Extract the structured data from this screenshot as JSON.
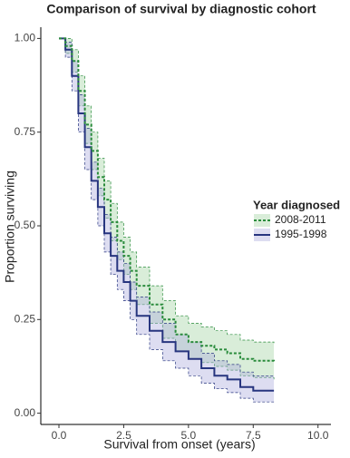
{
  "chart_data": {
    "type": "line",
    "step": true,
    "title": "Comparison of survival by diagnostic cohort",
    "x_label": "Survival from onset (years)",
    "y_label": "Proportion surviving",
    "legend_title": "Year diagnosed",
    "legend": "right",
    "x": [
      0,
      0.25,
      0.5,
      0.75,
      1,
      1.25,
      1.5,
      1.75,
      2,
      2.25,
      2.5,
      2.75,
      3,
      3.5,
      4,
      4.5,
      5,
      5.5,
      6,
      6.5,
      7,
      7.5,
      8.3
    ],
    "series": [
      {
        "name": "2008-2011",
        "color": "#2a8c3c",
        "band_color": "#9fd39f",
        "dash": true,
        "values": [
          1.0,
          0.98,
          0.94,
          0.86,
          0.77,
          0.7,
          0.63,
          0.57,
          0.51,
          0.46,
          0.42,
          0.38,
          0.34,
          0.29,
          0.25,
          0.21,
          0.19,
          0.18,
          0.17,
          0.16,
          0.145,
          0.14,
          0.135
        ],
        "lower": [
          1.0,
          0.96,
          0.91,
          0.82,
          0.72,
          0.65,
          0.58,
          0.52,
          0.46,
          0.41,
          0.37,
          0.33,
          0.29,
          0.24,
          0.2,
          0.165,
          0.145,
          0.135,
          0.125,
          0.115,
          0.1,
          0.095,
          0.09
        ],
        "upper": [
          1.0,
          1.0,
          0.97,
          0.9,
          0.82,
          0.75,
          0.68,
          0.62,
          0.56,
          0.51,
          0.47,
          0.43,
          0.39,
          0.34,
          0.3,
          0.26,
          0.24,
          0.23,
          0.22,
          0.21,
          0.195,
          0.19,
          0.185
        ]
      },
      {
        "name": "1995-1998",
        "color": "#27357f",
        "band_color": "#a9a9dc",
        "dash": false,
        "values": [
          1.0,
          0.97,
          0.9,
          0.8,
          0.71,
          0.62,
          0.55,
          0.48,
          0.42,
          0.38,
          0.35,
          0.3,
          0.26,
          0.22,
          0.19,
          0.165,
          0.145,
          0.12,
          0.1,
          0.09,
          0.07,
          0.06,
          0.06
        ],
        "lower": [
          1.0,
          0.95,
          0.86,
          0.75,
          0.65,
          0.57,
          0.5,
          0.43,
          0.37,
          0.33,
          0.3,
          0.25,
          0.21,
          0.17,
          0.14,
          0.12,
          0.1,
          0.08,
          0.065,
          0.055,
          0.04,
          0.03,
          0.03
        ],
        "upper": [
          1.0,
          0.99,
          0.94,
          0.85,
          0.76,
          0.67,
          0.6,
          0.53,
          0.47,
          0.43,
          0.4,
          0.35,
          0.31,
          0.27,
          0.24,
          0.21,
          0.19,
          0.16,
          0.14,
          0.13,
          0.11,
          0.1,
          0.1
        ]
      }
    ],
    "xlim": [
      -0.7,
      10.5
    ],
    "ylim": [
      -0.03,
      1.03
    ],
    "xticks": [
      {
        "value": 0,
        "label": "0.0"
      },
      {
        "value": 2.5,
        "label": "2.5"
      },
      {
        "value": 5,
        "label": "5.0"
      },
      {
        "value": 7.5,
        "label": "7.5"
      },
      {
        "value": 10,
        "label": "10.0"
      }
    ],
    "yticks": [
      {
        "value": 0,
        "label": "0.00"
      },
      {
        "value": 0.25,
        "label": "0.25"
      },
      {
        "value": 0.5,
        "label": "0.50"
      },
      {
        "value": 0.75,
        "label": "0.75"
      },
      {
        "value": 1,
        "label": "1.00"
      }
    ],
    "grid": false
  }
}
